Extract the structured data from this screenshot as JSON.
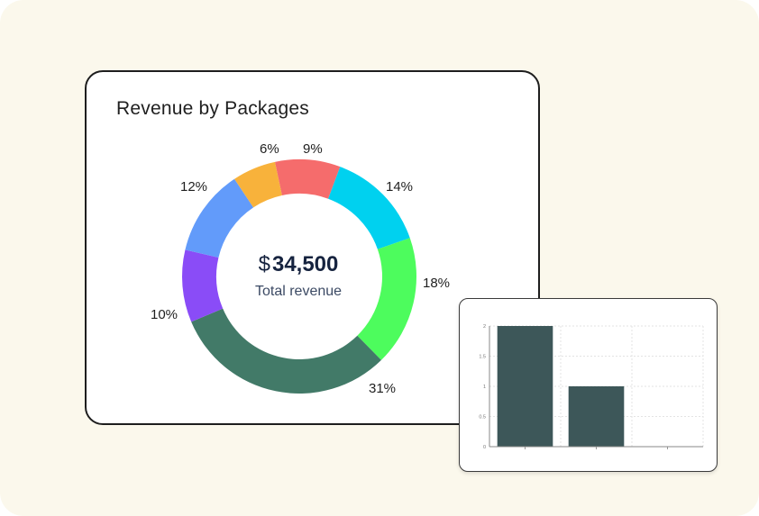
{
  "chart_data": [
    {
      "type": "pie",
      "title": "Revenue by Packages",
      "center_value_currency": "$",
      "center_value": "34,500",
      "center_label": "Total revenue",
      "slices": [
        {
          "label": "9%",
          "value": 9,
          "color": "#f56c6c"
        },
        {
          "label": "14%",
          "value": 14,
          "color": "#00d1ef"
        },
        {
          "label": "18%",
          "value": 18,
          "color": "#4dfc5d"
        },
        {
          "label": "31%",
          "value": 31,
          "color": "#427a68"
        },
        {
          "label": "10%",
          "value": 10,
          "color": "#8a4cf7"
        },
        {
          "label": "12%",
          "value": 12,
          "color": "#629bfa"
        },
        {
          "label": "6%",
          "value": 6,
          "color": "#f8b23b"
        }
      ]
    },
    {
      "type": "bar",
      "categories": [
        "",
        "",
        ""
      ],
      "values": [
        2,
        1,
        0
      ],
      "ylim": [
        0,
        2
      ],
      "yticks": [
        "0",
        "0.5",
        "1",
        "1.5",
        "2"
      ],
      "bar_color": "#3d5759",
      "grid": true
    }
  ]
}
